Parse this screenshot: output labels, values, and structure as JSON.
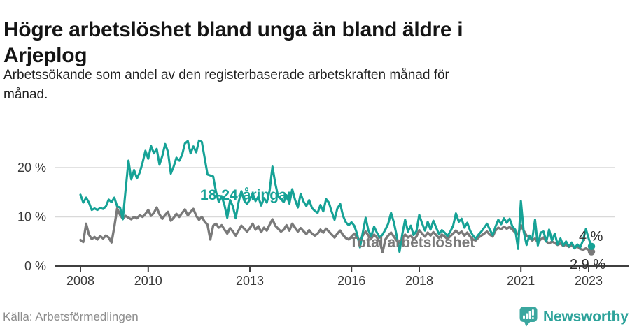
{
  "header": {
    "title_lines": [
      "Högre arbetslöshet bland unga än bland äldre i",
      "Arjeplog"
    ],
    "subtitle_lines": [
      "Arbetssökande som andel av den registerbaserade arbetskraften månad för",
      "månad."
    ]
  },
  "chart_data": {
    "type": "line",
    "title": "Högre arbetslöshet bland unga än bland äldre i Arjeplog",
    "subtitle": "Arbetssökande som andel av den registerbaserade arbetskraften månad för månad.",
    "x_start": "2008-01",
    "x_end": "2023-02",
    "x_step": "month",
    "xlabel": "",
    "ylabel": "",
    "ylim": [
      0,
      27
    ],
    "grid": "horizontal",
    "legend_position": "inline-annotations",
    "ytick_values": [
      0,
      10,
      20
    ],
    "yticks": [
      "0 %",
      "10 %",
      "20 %"
    ],
    "xticks": [
      2008,
      2010,
      2013,
      2016,
      2018,
      2021,
      2023
    ],
    "colors": {
      "young": "#16a296",
      "total": "#7a7a7a",
      "grid": "#d9d9d9",
      "axis": "#3f3f3f",
      "tick_label": "#3a3a3a"
    },
    "series": [
      {
        "name": "Total arbetslöshet",
        "color": "#7a7a7a",
        "end_label": "2,9 %",
        "end_value": 2.9,
        "values": [
          5.3,
          4.9,
          8.6,
          6.4,
          5.5,
          5.9,
          5.4,
          6.1,
          5.6,
          6.2,
          5.8,
          4.8,
          8.0,
          11.7,
          10.4,
          9.6,
          10.2,
          9.8,
          9.5,
          10.0,
          9.7,
          10.3,
          10.0,
          10.6,
          11.4,
          10.2,
          10.8,
          11.9,
          10.5,
          9.6,
          10.4,
          11.0,
          9.2,
          9.8,
          10.6,
          10.0,
          10.8,
          11.5,
          10.3,
          11.0,
          11.6,
          10.2,
          9.4,
          10.0,
          9.0,
          8.4,
          5.4,
          8.2,
          8.6,
          7.8,
          8.3,
          7.4,
          6.6,
          7.7,
          7.0,
          6.2,
          7.2,
          8.2,
          7.6,
          7.0,
          7.7,
          8.6,
          7.4,
          8.1,
          6.9,
          7.8,
          7.2,
          8.4,
          9.5,
          8.2,
          7.6,
          7.0,
          7.4,
          8.3,
          7.2,
          8.6,
          7.8,
          7.0,
          7.7,
          7.1,
          6.5,
          7.3,
          6.6,
          6.2,
          6.6,
          7.4,
          6.8,
          7.6,
          7.0,
          6.4,
          5.8,
          6.6,
          7.2,
          6.3,
          5.7,
          5.4,
          6.0,
          6.6,
          5.8,
          5.2,
          6.2,
          7.0,
          6.2,
          5.6,
          6.4,
          5.8,
          5.0,
          2.8,
          5.4,
          6.2,
          6.8,
          6.0,
          5.2,
          4.6,
          5.6,
          6.4,
          5.8,
          6.2,
          5.4,
          6.0,
          7.3,
          6.6,
          6.0,
          6.8,
          6.2,
          6.9,
          6.3,
          5.7,
          6.4,
          6.0,
          5.5,
          6.1,
          6.6,
          7.2,
          6.6,
          7.0,
          6.2,
          6.8,
          6.0,
          5.4,
          5.2,
          5.8,
          6.2,
          6.6,
          7.0,
          6.4,
          6.0,
          7.2,
          7.8,
          7.5,
          8.0,
          7.6,
          7.9,
          7.4,
          6.8,
          6.4,
          8.3,
          7.2,
          6.2,
          5.8,
          5.2,
          5.6,
          4.8,
          5.4,
          5.8,
          5.0,
          4.6,
          5.0,
          4.7,
          4.3,
          4.6,
          4.1,
          4.4,
          3.9,
          4.2,
          3.7,
          4.0,
          3.5,
          3.3,
          3.6,
          3.3,
          2.9
        ]
      },
      {
        "name": "18-24-åringar",
        "color": "#16a296",
        "end_label": "4 %",
        "end_value": 4.0,
        "values": [
          14.5,
          12.9,
          13.9,
          12.9,
          11.4,
          11.7,
          11.4,
          11.8,
          11.6,
          12.1,
          13.5,
          13.0,
          13.9,
          12.1,
          11.9,
          9.5,
          15.5,
          21.4,
          17.6,
          19.5,
          17.8,
          19.0,
          21.0,
          23.4,
          21.8,
          24.4,
          22.9,
          23.8,
          20.6,
          22.4,
          24.8,
          23.2,
          18.8,
          20.2,
          22.0,
          21.4,
          22.6,
          24.9,
          25.4,
          22.9,
          24.3,
          23.1,
          25.5,
          25.2,
          21.9,
          18.6,
          18.4,
          18.2,
          15.1,
          13.0,
          14.2,
          12.4,
          9.8,
          13.4,
          12.1,
          9.7,
          13.0,
          15.2,
          13.3,
          12.6,
          13.5,
          14.8,
          13.2,
          14.1,
          12.3,
          13.8,
          12.9,
          15.3,
          20.2,
          16.8,
          14.2,
          13.6,
          13.0,
          14.4,
          12.7,
          15.6,
          13.5,
          11.9,
          14.7,
          13.1,
          12.2,
          13.4,
          11.8,
          11.2,
          10.8,
          12.4,
          11.1,
          13.6,
          12.9,
          11.0,
          9.4,
          11.7,
          12.6,
          10.2,
          8.9,
          8.3,
          8.9,
          8.2,
          6.5,
          3.8,
          6.8,
          9.8,
          7.2,
          6.1,
          8.0,
          6.8,
          5.8,
          6.4,
          7.4,
          8.6,
          10.8,
          8.9,
          6.2,
          2.9,
          6.5,
          9.4,
          7.0,
          8.2,
          6.3,
          7.1,
          10.4,
          8.7,
          7.2,
          9.0,
          7.4,
          9.2,
          7.8,
          6.5,
          7.3,
          6.8,
          6.1,
          7.0,
          8.2,
          10.7,
          9.0,
          9.6,
          7.8,
          8.8,
          7.2,
          6.2,
          5.6,
          6.4,
          7.0,
          7.8,
          8.6,
          7.4,
          6.3,
          8.0,
          9.4,
          8.5,
          9.7,
          8.8,
          9.6,
          8.0,
          7.4,
          3.5,
          13.2,
          7.0,
          4.3,
          6.2,
          5.4,
          9.4,
          4.2,
          6.8,
          7.0,
          5.0,
          7.4,
          5.2,
          6.6,
          4.4,
          5.6,
          4.2,
          5.0,
          4.0,
          4.8,
          3.6,
          4.4,
          3.8,
          5.2,
          7.5,
          5.6,
          4.0
        ]
      }
    ]
  },
  "footer": {
    "source": "Källa: Arbetsförmedlingen",
    "brand": "Newsworthy",
    "brand_color": "#2ea39b"
  }
}
